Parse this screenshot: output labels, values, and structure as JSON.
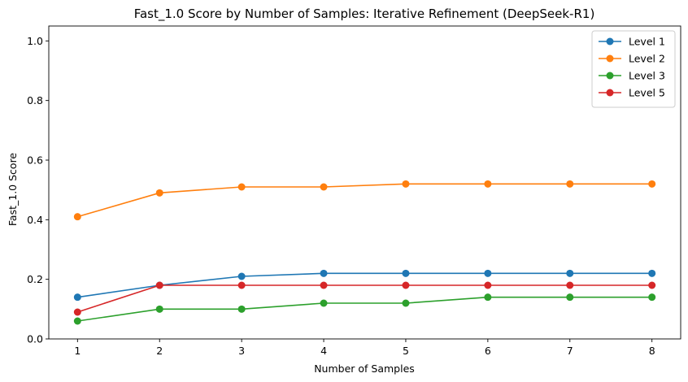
{
  "chart_data": {
    "type": "line",
    "title": "Fast_1.0 Score by Number of Samples: Iterative Refinement (DeepSeek-R1)",
    "xlabel": "Number of Samples",
    "ylabel": "Fast_1.0 Score",
    "x": [
      1,
      2,
      3,
      4,
      5,
      6,
      7,
      8
    ],
    "xlim": [
      0.65,
      8.35
    ],
    "ylim": [
      0,
      1.05
    ],
    "xticks": [
      1,
      2,
      3,
      4,
      5,
      6,
      7,
      8
    ],
    "yticks": [
      "0.0",
      "0.2",
      "0.4",
      "0.6",
      "0.8",
      "1.0"
    ],
    "grid": false,
    "legend_position": "top-right",
    "series": [
      {
        "name": "Level 1",
        "color": "#1f77b4",
        "values": [
          0.14,
          0.18,
          0.21,
          0.22,
          0.22,
          0.22,
          0.22,
          0.22
        ]
      },
      {
        "name": "Level 2",
        "color": "#ff7f0e",
        "values": [
          0.41,
          0.49,
          0.51,
          0.51,
          0.52,
          0.52,
          0.52,
          0.52
        ]
      },
      {
        "name": "Level 3",
        "color": "#2ca02c",
        "values": [
          0.06,
          0.1,
          0.1,
          0.12,
          0.12,
          0.14,
          0.14,
          0.14
        ]
      },
      {
        "name": "Level 5",
        "color": "#d62728",
        "values": [
          0.09,
          0.18,
          0.18,
          0.18,
          0.18,
          0.18,
          0.18,
          0.18
        ]
      }
    ]
  }
}
